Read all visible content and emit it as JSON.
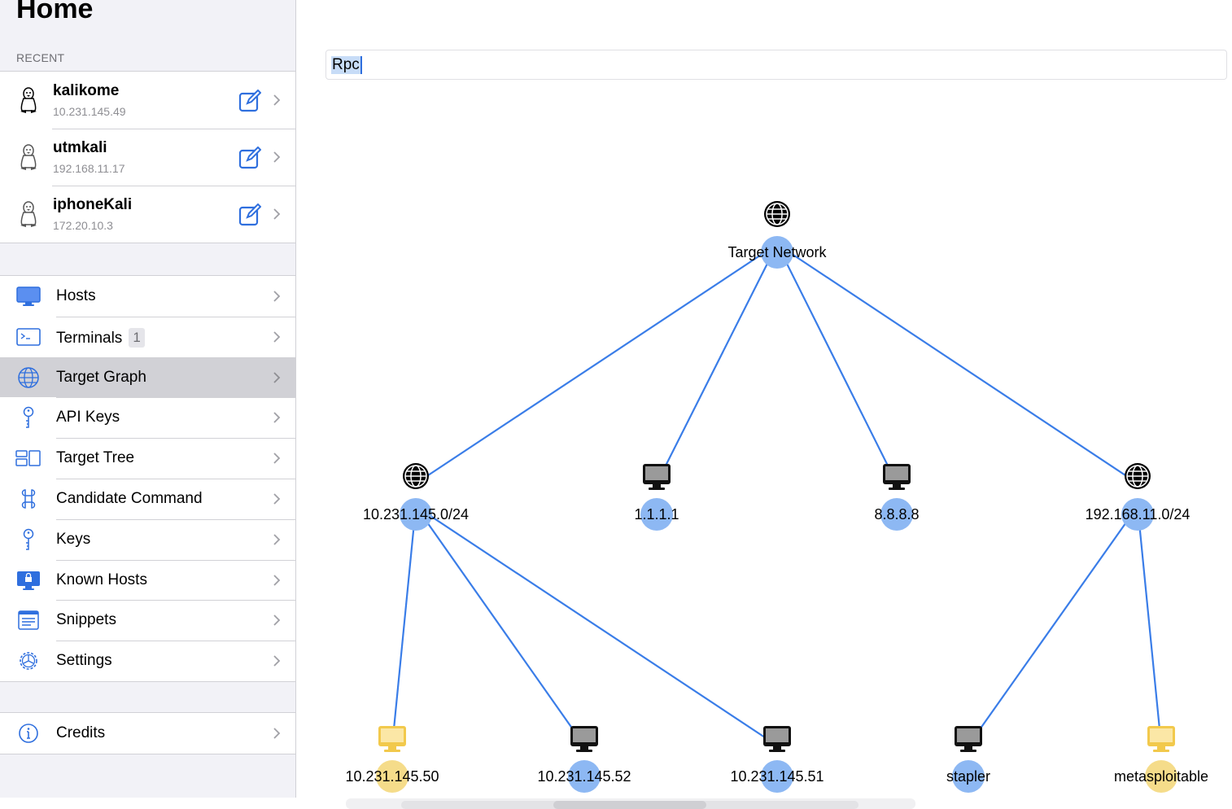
{
  "sidebar": {
    "title": "Home",
    "recent_header": "RECENT",
    "recent": [
      {
        "name": "kalikome",
        "ip": "10.231.145.49"
      },
      {
        "name": "utmkali",
        "ip": "192.168.11.17"
      },
      {
        "name": "iphoneKali",
        "ip": "172.20.10.3"
      }
    ],
    "menu": [
      {
        "label": "Hosts",
        "icon": "monitor-icon"
      },
      {
        "label": "Terminals",
        "icon": "terminal-icon",
        "badge": "1"
      },
      {
        "label": "Target Graph",
        "icon": "globe-icon",
        "selected": true
      },
      {
        "label": "API Keys",
        "icon": "key-icon"
      },
      {
        "label": "Target Tree",
        "icon": "tree-icon"
      },
      {
        "label": "Candidate Command",
        "icon": "command-icon"
      },
      {
        "label": "Keys",
        "icon": "key-icon"
      },
      {
        "label": "Known Hosts",
        "icon": "lock-monitor-icon"
      },
      {
        "label": "Snippets",
        "icon": "snippets-icon"
      },
      {
        "label": "Settings",
        "icon": "gear-icon"
      }
    ],
    "credits": {
      "label": "Credits",
      "icon": "info-icon"
    }
  },
  "search": {
    "value": "Rpc"
  },
  "graph": {
    "nodes": {
      "root": {
        "label": "Target Network",
        "icon": "globe-icon"
      },
      "subnet1": {
        "label": "10.231.145.0/24",
        "icon": "globe-icon"
      },
      "host_1111": {
        "label": "1.1.1.1",
        "icon": "computer-icon"
      },
      "host_8888": {
        "label": "8.8.8.8",
        "icon": "computer-icon"
      },
      "subnet2": {
        "label": "192.168.11.0/24",
        "icon": "globe-icon"
      },
      "h50": {
        "label": "10.231.145.50",
        "icon": "computer-icon-yellow"
      },
      "h52": {
        "label": "10.231.145.52",
        "icon": "computer-icon"
      },
      "h51": {
        "label": "10.231.145.51",
        "icon": "computer-icon"
      },
      "stapler": {
        "label": "stapler",
        "icon": "computer-icon"
      },
      "metasploitable": {
        "label": "metasploitable",
        "icon": "computer-icon-yellow"
      }
    },
    "colors": {
      "edge": "#3a7de8",
      "node_blue": "#8db8f3",
      "node_yellow": "#f5dc8a",
      "monitor_dark": "#111111",
      "monitor_yellow": "#f2c94c"
    }
  }
}
